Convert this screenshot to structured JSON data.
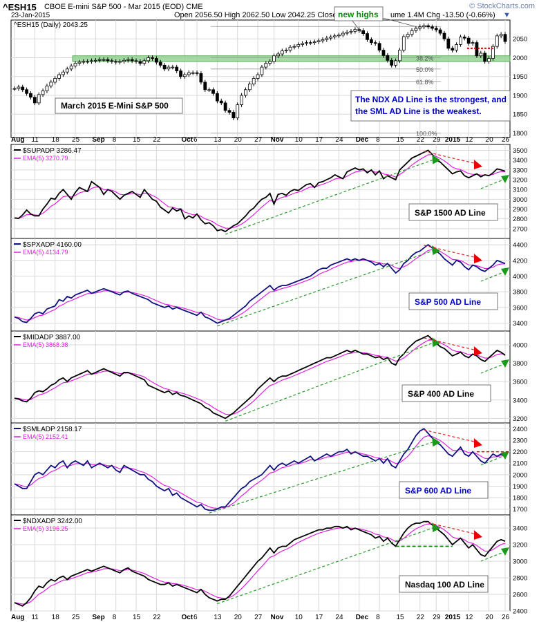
{
  "header": {
    "symbol": "^ESH15",
    "description": "CBOE E-mini S&P 500 - Mar 2015 (EOD) CME",
    "date": "23-Jan-2015",
    "ohlc": "Open 2056.50  High 2062.50  Low 2042.25  Close",
    "volume_chg": "ume 1.4M  Chg -13.50 (-0.66%)",
    "watermark": "© StockCharts.com"
  },
  "x_labels": [
    {
      "t": "Aug",
      "i": 0,
      "bold": true
    },
    {
      "t": "11",
      "i": 5
    },
    {
      "t": "18",
      "i": 10
    },
    {
      "t": "25",
      "i": 15
    },
    {
      "t": "Sep",
      "i": 20,
      "bold": true
    },
    {
      "t": "8",
      "i": 25
    },
    {
      "t": "15",
      "i": 30
    },
    {
      "t": "22",
      "i": 35
    },
    {
      "t": "Oct",
      "i": 42,
      "bold": true
    },
    {
      "t": "6",
      "i": 45
    },
    {
      "t": "13",
      "i": 50
    },
    {
      "t": "20",
      "i": 55
    },
    {
      "t": "27",
      "i": 60
    },
    {
      "t": "Nov",
      "i": 64,
      "bold": true
    },
    {
      "t": "10",
      "i": 70
    },
    {
      "t": "17",
      "i": 75
    },
    {
      "t": "24",
      "i": 80
    },
    {
      "t": "Dec",
      "i": 85,
      "bold": true
    },
    {
      "t": "8",
      "i": 90
    },
    {
      "t": "15",
      "i": 95
    },
    {
      "t": "22",
      "i": 100
    },
    {
      "t": "29",
      "i": 104
    },
    {
      "t": "2015",
      "i": 107,
      "bold": true
    },
    {
      "t": "12",
      "i": 112
    },
    {
      "t": "20",
      "i": 117
    },
    {
      "t": "26",
      "i": 121
    }
  ],
  "chart_data": [
    {
      "type": "ohlc",
      "id": "price",
      "title": "^ESH15 (Daily) 2043.25",
      "annotation": "March 2015 E-Mini S&P 500",
      "note_box": "The NDX AD Line is the strongest, and the SML AD Line is the weakest.",
      "callout": "new highs",
      "ylim": [
        1788,
        2100
      ],
      "yticks": [
        1800,
        1850,
        1900,
        1950,
        2000,
        2050
      ],
      "support_zone": [
        1990,
        2005
      ],
      "fib_levels": [
        {
          "label": "38.2%",
          "value": 2000
        },
        {
          "label": "50.0%",
          "value": 1970
        },
        {
          "label": "61.8%",
          "value": 1937
        },
        {
          "label": "100.0%",
          "value": 1800
        }
      ],
      "close": [
        1918,
        1922,
        1915,
        1905,
        1895,
        1880,
        1902,
        1912,
        1925,
        1935,
        1945,
        1955,
        1962,
        1970,
        1978,
        1985,
        1988,
        1990,
        1990,
        1992,
        1993,
        1995,
        1995,
        1992,
        1990,
        1988,
        1990,
        1993,
        1995,
        1992,
        1990,
        1985,
        1992,
        2000,
        1998,
        1988,
        1980,
        1970,
        1975,
        1975,
        1965,
        1950,
        1955,
        1960,
        1960,
        1958,
        1935,
        1915,
        1915,
        1905,
        1885,
        1880,
        1860,
        1855,
        1840,
        1875,
        1900,
        1915,
        1930,
        1945,
        1955,
        1975,
        1985,
        1990,
        2005,
        2010,
        2018,
        2020,
        2028,
        2030,
        2035,
        2038,
        2040,
        2040,
        2042,
        2045,
        2048,
        2052,
        2055,
        2058,
        2060,
        2065,
        2068,
        2070,
        2075,
        2072,
        2064,
        2048,
        2040,
        2038,
        2020,
        2006,
        1993,
        1980,
        1992,
        2020,
        2056,
        2062,
        2072,
        2078,
        2082,
        2085,
        2082,
        2078,
        2074,
        2065,
        2050,
        2025,
        2020,
        2035,
        2055,
        2052,
        2038,
        2040,
        2005,
        2012,
        1990,
        1998,
        2030,
        2058,
        2062,
        2043
      ],
      "y_note": "values read from the price panel"
    },
    {
      "type": "line",
      "id": "supadp",
      "title": "$SUPADP 3286.47",
      "ema_label": "EMA(5) 3270.79",
      "label": "S&P 1500 AD Line",
      "ylim": [
        2600,
        3560
      ],
      "yticks": [
        2700,
        2800,
        2900,
        3000,
        3100,
        3200,
        3300,
        3400,
        3500
      ],
      "values": [
        2810,
        2805,
        2840,
        2890,
        2850,
        2830,
        2830,
        2900,
        2950,
        3010,
        3000,
        3060,
        3100,
        3050,
        3000,
        3070,
        3120,
        3100,
        3080,
        3180,
        3150,
        3120,
        3050,
        3100,
        3080,
        3040,
        3000,
        3040,
        3060,
        3080,
        3050,
        3020,
        3100,
        3050,
        3000,
        2980,
        2920,
        2890,
        2860,
        2910,
        2880,
        2900,
        2800,
        2830,
        2810,
        2850,
        2790,
        2750,
        2760,
        2730,
        2680,
        2690,
        2670,
        2700,
        2730,
        2750,
        2790,
        2830,
        2880,
        2910,
        2960,
        3000,
        3020,
        3060,
        2950,
        3050,
        3060,
        3040,
        3080,
        3100,
        3090,
        3120,
        3150,
        3160,
        3120,
        3170,
        3180,
        3200,
        3220,
        3250,
        3230,
        3210,
        3280,
        3300,
        3320,
        3300,
        3310,
        3270,
        3300,
        3250,
        3290,
        3210,
        3240,
        3220,
        3200,
        3300,
        3340,
        3380,
        3420,
        3440,
        3460,
        3480,
        3500,
        3460,
        3400,
        3380,
        3340,
        3300,
        3260,
        3280,
        3290,
        3240,
        3220,
        3240,
        3260,
        3230,
        3250,
        3240,
        3270,
        3310,
        3300,
        3286
      ]
    },
    {
      "type": "line",
      "id": "spxadp",
      "title": "$SPXADP 4160.00",
      "ema_label": "EMA(5) 4134.79",
      "label": "S&P 500 AD Line",
      "ylim": [
        3300,
        4480
      ],
      "yticks": [
        3400,
        3600,
        3800,
        4000,
        4200,
        4400
      ],
      "values": [
        3480,
        3460,
        3420,
        3410,
        3460,
        3520,
        3540,
        3520,
        3580,
        3600,
        3620,
        3700,
        3680,
        3740,
        3720,
        3760,
        3780,
        3800,
        3820,
        3780,
        3800,
        3820,
        3840,
        3820,
        3800,
        3780,
        3760,
        3800,
        3810,
        3780,
        3760,
        3740,
        3720,
        3700,
        3660,
        3640,
        3620,
        3600,
        3620,
        3580,
        3600,
        3580,
        3560,
        3540,
        3520,
        3500,
        3540,
        3480,
        3460,
        3430,
        3400,
        3420,
        3440,
        3460,
        3500,
        3540,
        3580,
        3620,
        3680,
        3720,
        3760,
        3800,
        3840,
        3880,
        3820,
        3860,
        3880,
        3880,
        3900,
        3920,
        3940,
        3960,
        3980,
        4000,
        4040,
        4080,
        4100,
        4100,
        4140,
        4160,
        4180,
        4200,
        4220,
        4200,
        4220,
        4200,
        4220,
        4200,
        4180,
        4140,
        4160,
        4120,
        4160,
        4100,
        4040,
        4080,
        4160,
        4200,
        4260,
        4300,
        4320,
        4360,
        4400,
        4360,
        4320,
        4280,
        4220,
        4180,
        4140,
        4200,
        4180,
        4120,
        4080,
        4140,
        4120,
        4080,
        4060,
        4100,
        4140,
        4200,
        4180,
        4160
      ]
    },
    {
      "type": "line",
      "id": "midadp",
      "title": "$MIDADP 3887.00",
      "ema_label": "EMA(5) 3868.38",
      "label": "S&P 400 AD Line",
      "ylim": [
        3150,
        4150
      ],
      "yticks": [
        3200,
        3400,
        3600,
        3800,
        4000
      ],
      "values": [
        3420,
        3410,
        3390,
        3380,
        3420,
        3480,
        3500,
        3490,
        3520,
        3560,
        3580,
        3620,
        3640,
        3600,
        3640,
        3660,
        3680,
        3700,
        3720,
        3680,
        3700,
        3720,
        3740,
        3720,
        3700,
        3680,
        3660,
        3700,
        3700,
        3680,
        3660,
        3640,
        3620,
        3560,
        3540,
        3520,
        3500,
        3480,
        3500,
        3460,
        3480,
        3450,
        3440,
        3420,
        3400,
        3380,
        3360,
        3320,
        3300,
        3260,
        3240,
        3220,
        3200,
        3230,
        3260,
        3300,
        3340,
        3380,
        3420,
        3460,
        3520,
        3560,
        3600,
        3640,
        3600,
        3640,
        3660,
        3660,
        3680,
        3700,
        3720,
        3740,
        3760,
        3780,
        3800,
        3820,
        3840,
        3860,
        3860,
        3880,
        3900,
        3920,
        3940,
        3920,
        3940,
        3920,
        3900,
        3900,
        3880,
        3860,
        3870,
        3840,
        3860,
        3800,
        3780,
        3860,
        3900,
        3960,
        4000,
        4040,
        4060,
        4080,
        4100,
        4060,
        4020,
        3980,
        3960,
        3920,
        3880,
        3900,
        3920,
        3880,
        3860,
        3900,
        3880,
        3840,
        3820,
        3860,
        3900,
        3940,
        3920,
        3887
      ]
    },
    {
      "type": "line",
      "id": "smladp",
      "title": "$SMLADP 2158.17",
      "ema_label": "EMA(5) 2152.41",
      "label": "S&P 600 AD Line",
      "ylim": [
        1650,
        2450
      ],
      "yticks": [
        1700,
        1800,
        1900,
        2000,
        2100,
        2200,
        2300,
        2400
      ],
      "values": [
        1920,
        1900,
        1880,
        1880,
        1940,
        2000,
        2020,
        2000,
        2040,
        2080,
        2060,
        2100,
        2120,
        2060,
        2100,
        2120,
        2100,
        2080,
        2120,
        2060,
        2080,
        2100,
        2080,
        2060,
        2080,
        2040,
        2020,
        2080,
        2060,
        2040,
        2020,
        2000,
        2000,
        1960,
        1940,
        1900,
        1880,
        1860,
        1880,
        1820,
        1840,
        1800,
        1780,
        1760,
        1740,
        1720,
        1740,
        1700,
        1690,
        1690,
        1700,
        1720,
        1720,
        1760,
        1800,
        1840,
        1880,
        1900,
        1940,
        1960,
        1980,
        2000,
        2040,
        2080,
        2040,
        2080,
        2100,
        2080,
        2100,
        2120,
        2100,
        2120,
        2140,
        2160,
        2120,
        2140,
        2160,
        2180,
        2160,
        2180,
        2200,
        2200,
        2220,
        2180,
        2200,
        2180,
        2160,
        2160,
        2140,
        2120,
        2140,
        2100,
        2140,
        2080,
        2060,
        2120,
        2180,
        2220,
        2280,
        2340,
        2380,
        2400,
        2360,
        2320,
        2280,
        2260,
        2220,
        2180,
        2160,
        2200,
        2240,
        2180,
        2160,
        2200,
        2160,
        2120,
        2100,
        2140,
        2180,
        2160,
        2180,
        2158
      ]
    },
    {
      "type": "line",
      "id": "ndxadp",
      "title": "$NDXADP 3242.00",
      "ema_label": "EMA(5) 3196.25",
      "label": "Nasdaq 100 AD Line",
      "ylim": [
        2400,
        3560
      ],
      "yticks": [
        2400,
        2600,
        2800,
        3000,
        3200,
        3400
      ],
      "values": [
        2500,
        2480,
        2460,
        2500,
        2560,
        2640,
        2700,
        2680,
        2740,
        2780,
        2760,
        2800,
        2820,
        2780,
        2820,
        2840,
        2860,
        2880,
        2900,
        2880,
        2900,
        2920,
        2940,
        2920,
        2900,
        2880,
        2860,
        2900,
        2920,
        2880,
        2860,
        2840,
        2820,
        2780,
        2760,
        2740,
        2720,
        2720,
        2740,
        2700,
        2720,
        2700,
        2680,
        2660,
        2640,
        2620,
        2660,
        2600,
        2560,
        2540,
        2520,
        2540,
        2540,
        2580,
        2640,
        2700,
        2760,
        2820,
        2880,
        2940,
        3000,
        3040,
        3100,
        3160,
        3100,
        3160,
        3180,
        3180,
        3220,
        3260,
        3280,
        3300,
        3320,
        3340,
        3360,
        3380,
        3380,
        3400,
        3400,
        3420,
        3420,
        3400,
        3420,
        3380,
        3400,
        3380,
        3360,
        3340,
        3320,
        3280,
        3300,
        3240,
        3280,
        3220,
        3180,
        3260,
        3340,
        3400,
        3440,
        3460,
        3460,
        3480,
        3480,
        3440,
        3400,
        3360,
        3320,
        3260,
        3200,
        3240,
        3280,
        3220,
        3160,
        3200,
        3140,
        3080,
        3060,
        3120,
        3180,
        3240,
        3260,
        3242
      ]
    }
  ]
}
